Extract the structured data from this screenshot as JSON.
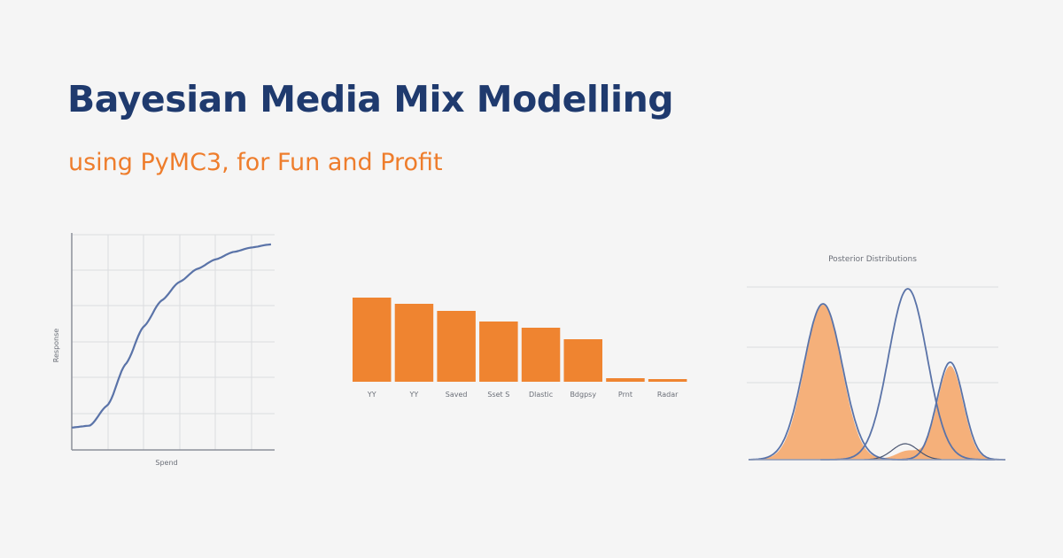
{
  "header": {
    "title": "Bayesian Media Mix Modelling",
    "subtitle": "using PyMC3, for Fun and Profit"
  },
  "colors": {
    "title": "#1f3a6e",
    "subtitle": "#ee7d2c",
    "bar": "#ef8430",
    "density_fill": "#f5b07a",
    "line": "#5a73a8",
    "grid": "#dcdde0",
    "background": "#f5f5f5"
  },
  "chart_data": [
    {
      "type": "line",
      "title": "",
      "xlabel": "Spend",
      "ylabel": "Response",
      "grid": true,
      "description": "S-shaped saturation curve: flat low start, steep rise, plateau near top",
      "x": [
        0,
        0.5,
        1,
        1.5,
        2,
        2.5,
        3,
        3.5,
        4,
        4.5,
        5,
        5.5
      ],
      "values": [
        0.6,
        0.65,
        1.2,
        2.3,
        3.3,
        4.0,
        4.5,
        4.85,
        5.1,
        5.3,
        5.42,
        5.5
      ],
      "xlim": [
        0,
        5.65
      ],
      "ylim": [
        0,
        6
      ]
    },
    {
      "type": "bar",
      "title": "",
      "categories": [
        "YY",
        "YY",
        "Saved",
        "Sset S",
        "Dlastic",
        "Bdgpsy",
        "Prnt",
        "Radar"
      ],
      "values": [
        95,
        88,
        80,
        68,
        61,
        48,
        4,
        3
      ],
      "xlabel": "",
      "ylabel": "",
      "ylim": [
        0,
        100
      ],
      "grid": false
    },
    {
      "type": "area",
      "title": "Posterior Distributions",
      "grid": true,
      "series": [
        {
          "name": "filled-mixture",
          "style": "filled",
          "peaks": [
            {
              "x": 0.3,
              "height": 0.88
            },
            {
              "x": 0.62,
              "height": 0.05
            },
            {
              "x": 0.78,
              "height": 0.53
            }
          ]
        },
        {
          "name": "outline-1",
          "style": "line",
          "peaks": [
            {
              "x": 0.3,
              "height": 0.88
            }
          ]
        },
        {
          "name": "outline-2",
          "style": "line",
          "peaks": [
            {
              "x": 0.63,
              "height": 0.98
            }
          ]
        },
        {
          "name": "outline-3",
          "style": "line",
          "peaks": [
            {
              "x": 0.78,
              "height": 0.56
            }
          ]
        }
      ],
      "xlim": [
        0,
        1
      ],
      "ylim": [
        0,
        1.05
      ]
    }
  ]
}
